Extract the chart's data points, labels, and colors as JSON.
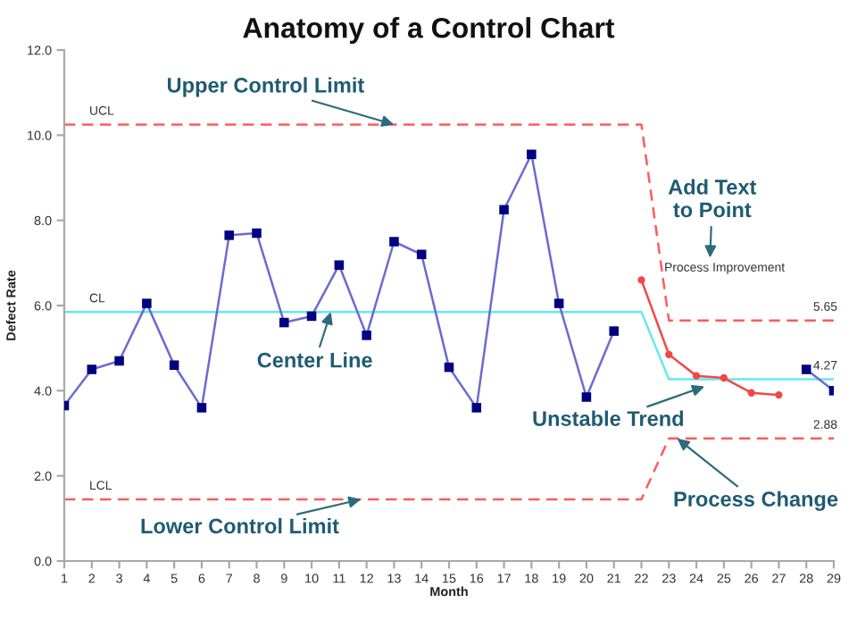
{
  "chart_data": {
    "type": "line",
    "title": "Anatomy of a Control Chart",
    "xlabel": "Month",
    "ylabel": "Defect Rate",
    "x": [
      1,
      2,
      3,
      4,
      5,
      6,
      7,
      8,
      9,
      10,
      11,
      12,
      13,
      14,
      15,
      16,
      17,
      18,
      19,
      20,
      21,
      22,
      23,
      24,
      25,
      26,
      27,
      28,
      29
    ],
    "xlim": [
      1,
      29
    ],
    "xticks": [
      1,
      2,
      3,
      4,
      5,
      6,
      7,
      8,
      9,
      10,
      11,
      12,
      13,
      14,
      15,
      16,
      17,
      18,
      19,
      20,
      21,
      22,
      23,
      24,
      25,
      26,
      27,
      28,
      29
    ],
    "ylim": [
      0,
      12
    ],
    "yticks": [
      {
        "value": 0,
        "label": "0.0"
      },
      {
        "value": 2,
        "label": "2.0"
      },
      {
        "value": 4,
        "label": "4.0"
      },
      {
        "value": 6,
        "label": "6.0"
      },
      {
        "value": 8,
        "label": "8.0"
      },
      {
        "value": 10,
        "label": "10.0"
      },
      {
        "value": 12,
        "label": "12.0"
      }
    ],
    "series": [
      {
        "color": "#6b6bd0",
        "marker": "square",
        "values": [
          3.65,
          4.5,
          4.7,
          6.05,
          4.6,
          3.6,
          7.65,
          7.7,
          5.6,
          5.75,
          6.95,
          5.3,
          7.5,
          7.2,
          4.55,
          3.6,
          8.25,
          9.55,
          6.05,
          3.85,
          5.4,
          null,
          null,
          null,
          null,
          null,
          null,
          4.5,
          4.0
        ],
        "colors": [
          "#000080",
          "#000080",
          "#000080",
          "#000080",
          "#000080",
          "#000080",
          "#000080",
          "#000080",
          "#000080",
          "#000080",
          "#000080",
          "#000080",
          "#000080",
          "#000080",
          "#000080",
          "#000080",
          "#000080",
          "#000080",
          "#000080",
          "#000080",
          "#000080",
          null,
          null,
          null,
          null,
          null,
          null,
          "#000080",
          "#000080"
        ]
      },
      {
        "color": "#f04848",
        "marker": "circle",
        "x": [
          22,
          23,
          24,
          25,
          26,
          27
        ],
        "values": [
          6.6,
          4.85,
          4.35,
          4.3,
          3.95,
          3.9
        ]
      },
      {
        "name": "UCL",
        "x": [
          1,
          22,
          23,
          29
        ],
        "values": [
          10.25,
          10.25,
          5.65,
          5.65
        ],
        "color": "#ff5a5a",
        "line_style": "dashed",
        "value_labels": [
          null,
          null,
          null,
          "5.65"
        ]
      },
      {
        "name": "CL",
        "x": [
          1,
          22,
          23,
          29
        ],
        "values": [
          5.85,
          5.85,
          4.27,
          4.27
        ],
        "color": "#66e8ee",
        "line_style": "solid",
        "value_labels": [
          null,
          null,
          null,
          "4.27"
        ]
      },
      {
        "name": "LCL",
        "x": [
          1,
          22,
          23,
          29
        ],
        "values": [
          1.45,
          1.45,
          2.88,
          2.88
        ],
        "color": "#ff5a5a",
        "line_style": "dashed",
        "value_labels": [
          null,
          null,
          null,
          "2.88"
        ]
      }
    ],
    "annotations": [
      {
        "text": "Upper Control Limit",
        "x": 13,
        "y": 10.25
      },
      "Add Text\nto Point",
      "Process Improvement",
      {
        "text": "Center Line",
        "x": 10.7,
        "y": 5.85
      },
      {
        "text": "Unstable Trend",
        "x": 24.3,
        "y": 4.1
      },
      {
        "text": "Lower Control Limit",
        "x": 11.8,
        "y": 1.45
      },
      {
        "text": "Process Change",
        "x": 23.3,
        "y": 2.88
      }
    ]
  }
}
